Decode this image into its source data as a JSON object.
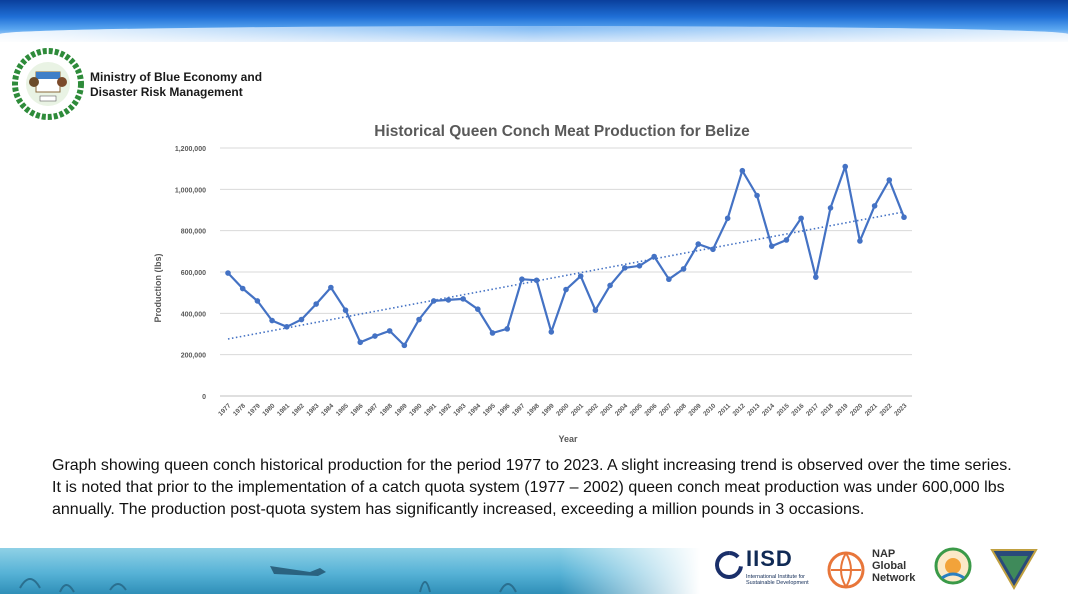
{
  "organization": {
    "name_line1": "Ministry of Blue Economy and",
    "name_line2": "Disaster Risk Management"
  },
  "chart_data": {
    "type": "line",
    "title": "Historical Queen Conch Meat Production for Belize",
    "xlabel": "Year",
    "ylabel": "Production (lbs)",
    "ylim": [
      0,
      1200000
    ],
    "yticks": [
      0,
      200000,
      400000,
      600000,
      800000,
      1000000,
      1200000
    ],
    "ytick_labels": [
      "0",
      "200,000",
      "400,000",
      "600,000",
      "800,000",
      "1,000,000",
      "1,200,000"
    ],
    "grid": "horizontal",
    "trendline": "linear, dotted",
    "x": [
      "1977",
      "1978",
      "1979",
      "1980",
      "1981",
      "1982",
      "1983",
      "1984",
      "1985",
      "1986",
      "1987",
      "1988",
      "1989",
      "1990",
      "1991",
      "1992",
      "1993",
      "1994",
      "1995",
      "1996",
      "1997",
      "1998",
      "1999",
      "2000",
      "2001",
      "2002",
      "2003",
      "2004",
      "2005",
      "2006",
      "2007",
      "2008",
      "2009",
      "2010",
      "2011",
      "2012",
      "2013",
      "2014",
      "2015",
      "2016",
      "2017",
      "2018",
      "2019",
      "2020",
      "2021",
      "2022",
      "2023"
    ],
    "series": [
      {
        "color": "#4472c4",
        "values": [
          595000,
          520000,
          460000,
          365000,
          335000,
          370000,
          445000,
          525000,
          415000,
          260000,
          290000,
          315000,
          245000,
          370000,
          460000,
          465000,
          470000,
          420000,
          305000,
          325000,
          565000,
          560000,
          310000,
          515000,
          580000,
          415000,
          535000,
          620000,
          630000,
          675000,
          565000,
          615000,
          735000,
          710000,
          860000,
          1090000,
          970000,
          725000,
          755000,
          860000,
          575000,
          910000,
          1110000,
          750000,
          920000,
          1045000,
          865000
        ]
      }
    ]
  },
  "caption": "Graph showing queen conch historical production for the period 1977 to 2023. A slight increasing trend is observed over the time series. It is noted that prior to the implementation of a catch quota system (1977 – 2002) queen conch meat production was under 600,000 lbs annually. The production post-quota system has significantly increased, exceeding a million pounds in 3 occasions.",
  "partners": {
    "iisd_name": "IISD",
    "iisd_full": "International Institute for Sustainable Development",
    "nap_line1": "NAP",
    "nap_line2": "Global",
    "nap_line3": "Network"
  }
}
